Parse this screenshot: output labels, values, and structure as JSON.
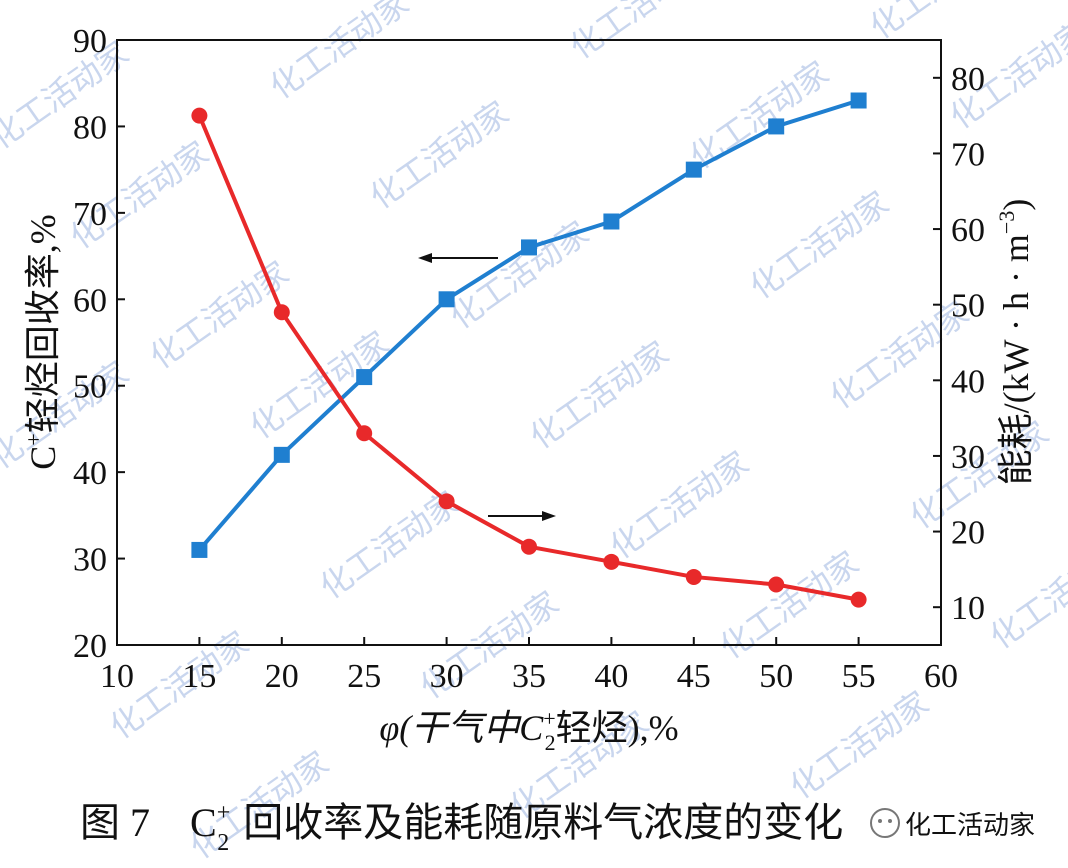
{
  "chart_data": {
    "type": "line",
    "x": [
      15,
      20,
      25,
      30,
      35,
      40,
      45,
      50,
      55
    ],
    "xlim": [
      10,
      60
    ],
    "xticks": [
      10,
      15,
      20,
      25,
      30,
      35,
      40,
      45,
      50,
      55,
      60
    ],
    "xlabel": {
      "prefix": "φ(干气中C",
      "sup": "+",
      "sub": "2",
      "suffix": "轻烃),%"
    },
    "ylabel_left": {
      "prefix": "C",
      "sup": "+",
      "suffix": "轻烃回收率,%"
    },
    "ylabel_right": {
      "main": "能耗/(kW · h · m",
      "sup": "−3",
      "tail": ")"
    },
    "ylim_left": [
      20,
      90
    ],
    "yticks_left": [
      20,
      30,
      40,
      50,
      60,
      70,
      80,
      90
    ],
    "ylim_right": [
      5,
      85
    ],
    "yticks_right": [
      10,
      20,
      30,
      40,
      50,
      60,
      70,
      80
    ],
    "series": [
      {
        "axis": "left",
        "color": "#1f7fd0",
        "marker": "square",
        "values": [
          31,
          42,
          51,
          60,
          66,
          69,
          75,
          80,
          83
        ]
      },
      {
        "axis": "right",
        "color": "#e8292a",
        "marker": "circle",
        "values": [
          75,
          49,
          33,
          24,
          18,
          16,
          14,
          13,
          11
        ]
      }
    ],
    "annotations": [
      "arrow-left pointing to left axis (blue series)",
      "arrow-right pointing to right axis (red series)"
    ],
    "grid": false
  },
  "caption": {
    "prefix": "图 7",
    "c": "C",
    "sup": "+",
    "sub": "2",
    "text": "回收率及能耗随原料气浓度的变化"
  },
  "watermark": {
    "text": "化工活动家",
    "badge": "化工活动家"
  }
}
